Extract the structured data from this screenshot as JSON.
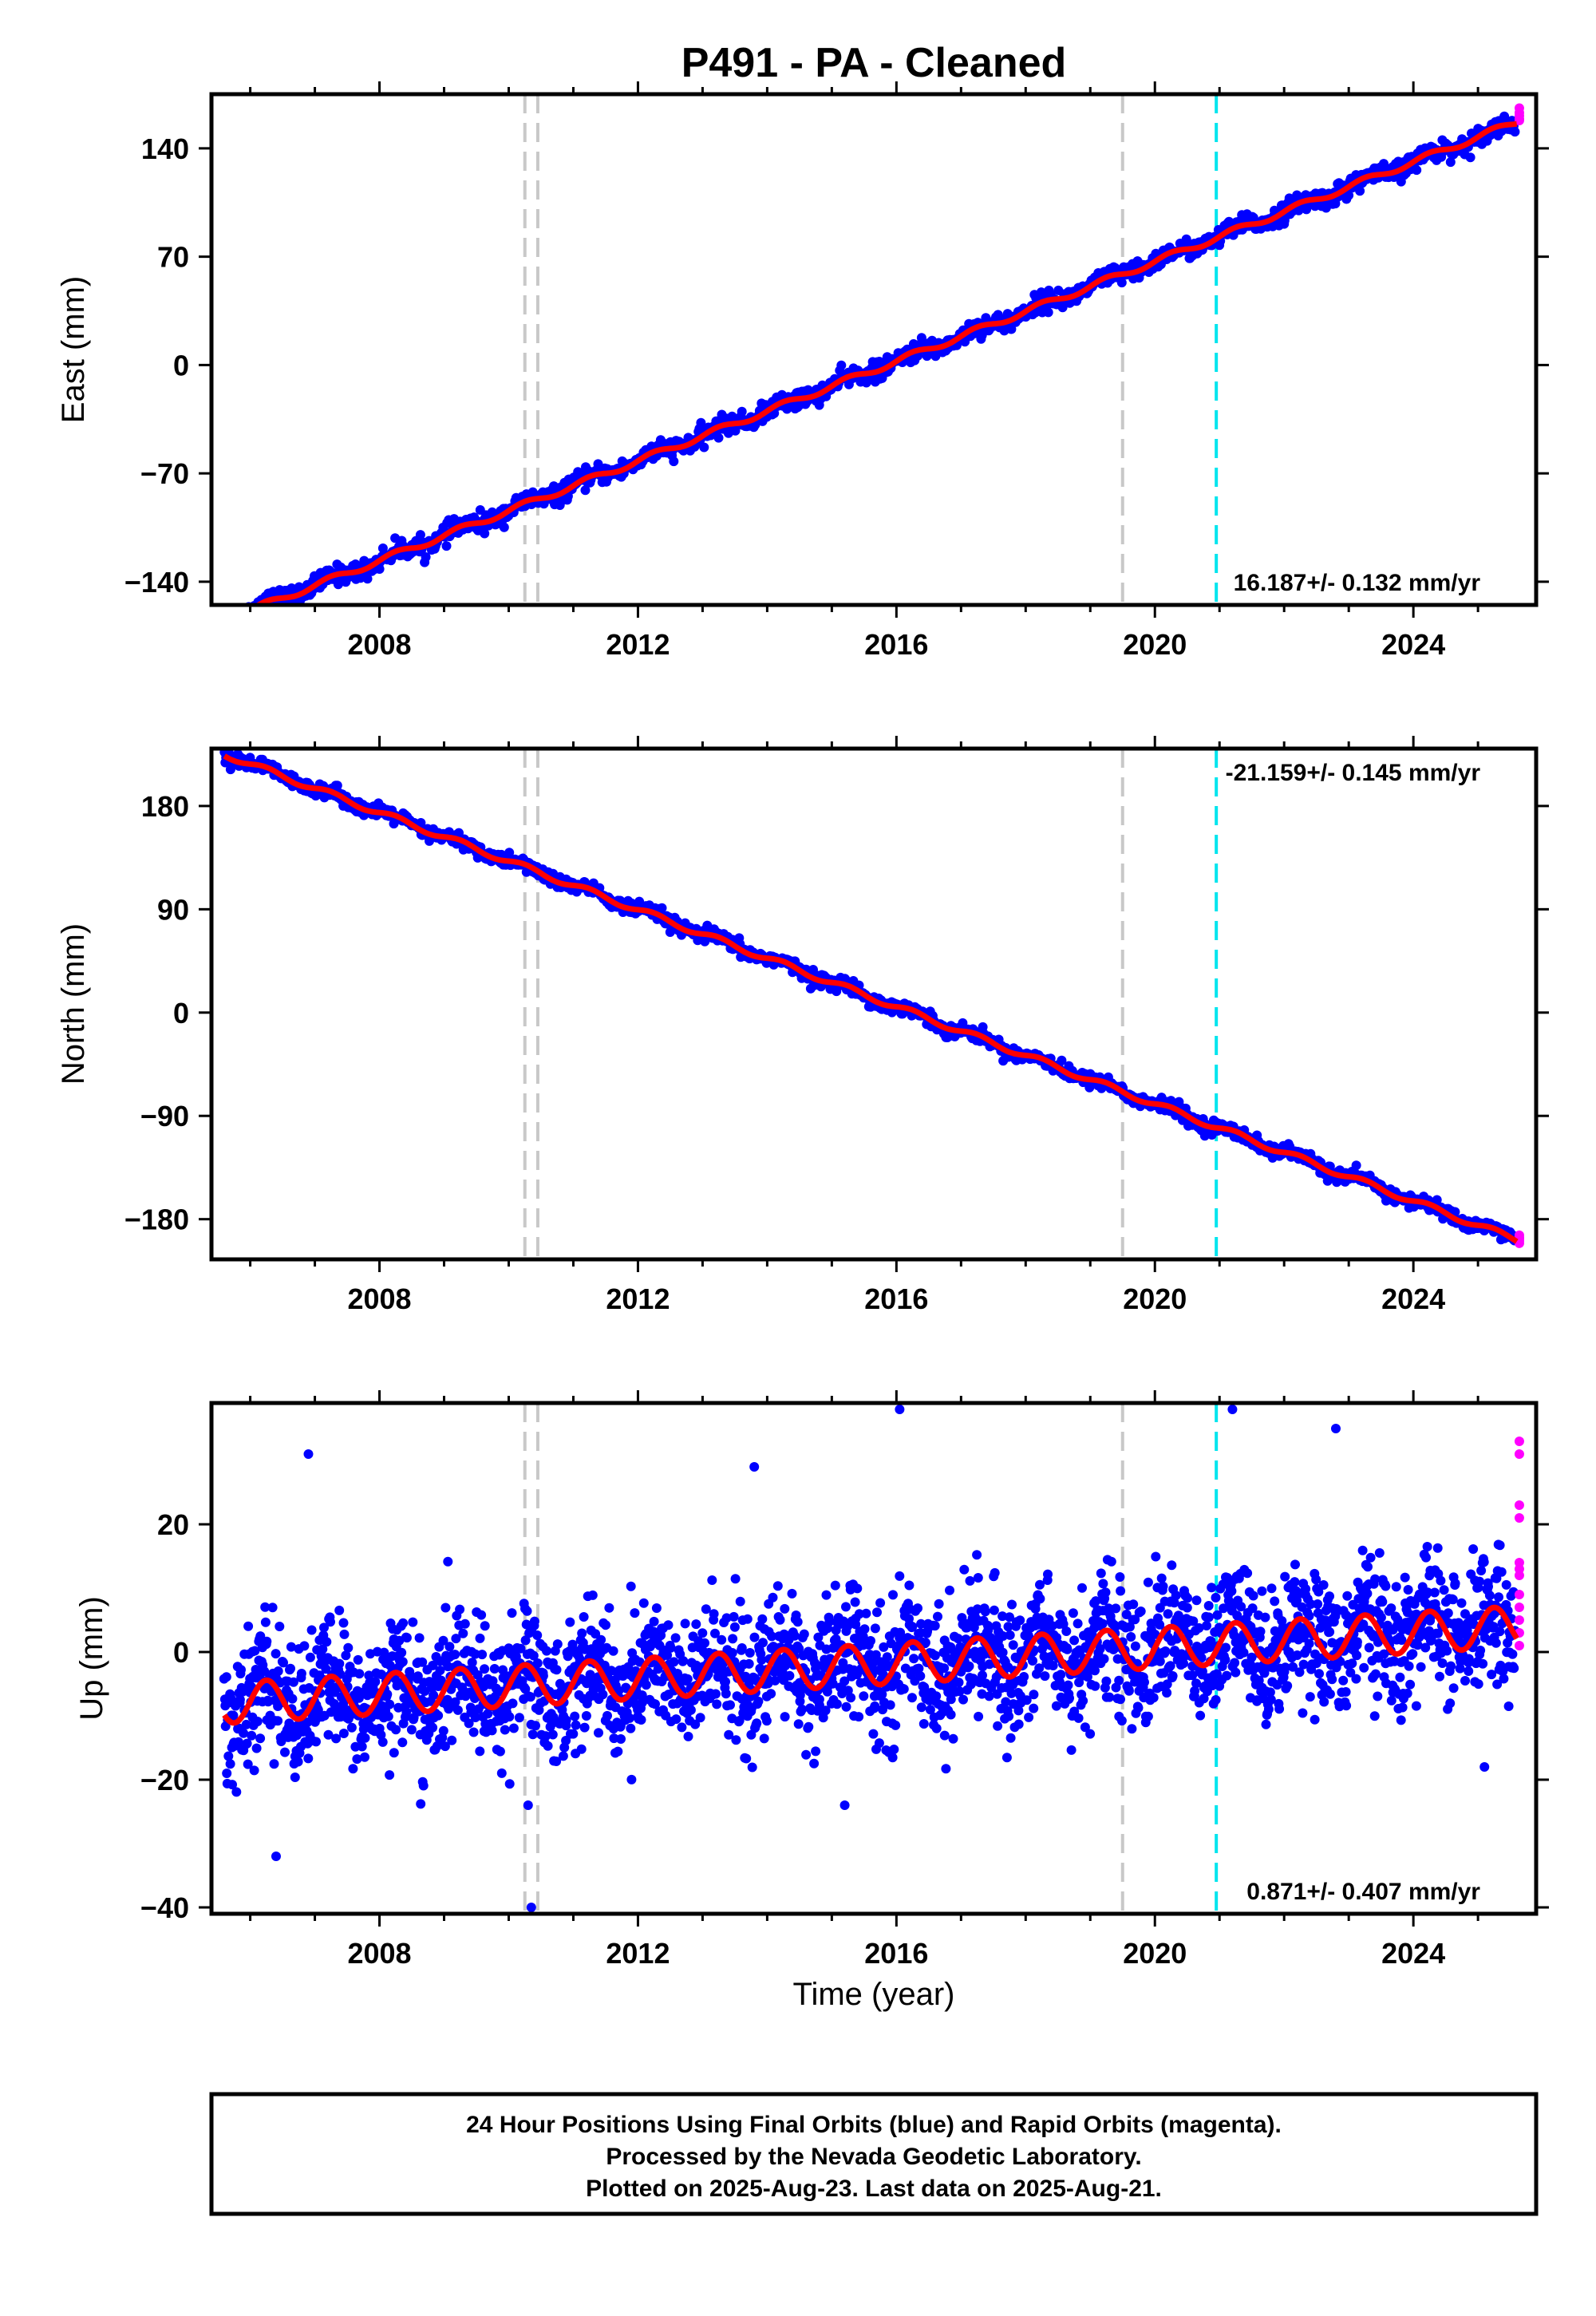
{
  "title": "P491  - PA - Cleaned",
  "colors": {
    "final_points": "#0000ff",
    "rapid_points": "#ff00ff",
    "model": "#ff0000",
    "equipment_change": "#c8c8c8",
    "earthquake": "#00e5ee"
  },
  "xlabel": "Time (year)",
  "footer": [
    "24 Hour Positions Using Final Orbits (blue) and Rapid Orbits (magenta).",
    "Processed by the Nevada Geodetic Laboratory.",
    "Plotted on 2025-Aug-23. Last data on 2025-Aug-21."
  ],
  "chart_data": [
    {
      "type": "scatter",
      "ylabel": "East (mm)",
      "xlim": [
        2005.4,
        2025.9
      ],
      "ylim": [
        -155,
        175
      ],
      "xticks": [
        2008,
        2012,
        2016,
        2020,
        2024
      ],
      "yticks": [
        -140,
        -70,
        0,
        70,
        140
      ],
      "rate_label": "16.187+/- 0.132 mm/yr",
      "rate_position": "bottom-right",
      "start": [
        2005.6,
        -165
      ],
      "end": [
        2025.6,
        157
      ],
      "seasonal_amplitude": 2,
      "scatter": 3,
      "rapid_values": [
        158,
        161,
        163,
        166,
        159
      ],
      "vertical_lines_gray": [
        2010.25,
        2010.45,
        2019.5
      ],
      "vertical_lines_cyan": [
        2020.95
      ]
    },
    {
      "type": "scatter",
      "ylabel": "North (mm)",
      "xlim": [
        2005.4,
        2025.9
      ],
      "ylim": [
        -215,
        230
      ],
      "xticks": [
        2008,
        2012,
        2016,
        2020,
        2024
      ],
      "yticks": [
        -180,
        -90,
        0,
        90,
        180
      ],
      "rate_label": "-21.159+/- 0.145 mm/yr",
      "rate_position": "top-right",
      "start": [
        2005.6,
        225
      ],
      "end": [
        2025.6,
        -198
      ],
      "seasonal_amplitude": 2.5,
      "scatter": 3,
      "rapid_values": [
        -196,
        -199,
        -201,
        -194,
        -197
      ],
      "vertical_lines_gray": [
        2010.25,
        2010.45,
        2019.5
      ],
      "vertical_lines_cyan": [
        2020.95
      ]
    },
    {
      "type": "scatter",
      "ylabel": "Up (mm)",
      "xlim": [
        2005.4,
        2025.9
      ],
      "ylim": [
        -41,
        39
      ],
      "xticks": [
        2008,
        2012,
        2016,
        2020,
        2024
      ],
      "yticks": [
        -40,
        -20,
        0,
        20
      ],
      "rate_label": "0.871+/- 0.407 mm/yr",
      "rate_position": "bottom-right",
      "start": [
        2005.6,
        -8
      ],
      "end": [
        2025.6,
        4
      ],
      "seasonal_amplitude": 3.2,
      "scatter": 5,
      "rapid_values": [
        33,
        31,
        23,
        21,
        14,
        13,
        12,
        9,
        7,
        5,
        3,
        1
      ],
      "outliers": [
        [
          2006.4,
          -32
        ],
        [
          2010.35,
          -40
        ],
        [
          2010.3,
          -24
        ],
        [
          2015.2,
          -24
        ],
        [
          2016.05,
          38
        ],
        [
          2021.2,
          38
        ],
        [
          2022.8,
          35
        ],
        [
          2006.9,
          31
        ],
        [
          2013.8,
          29
        ],
        [
          2025.1,
          -18
        ]
      ],
      "vertical_lines_gray": [
        2010.25,
        2010.45,
        2019.5
      ],
      "vertical_lines_cyan": [
        2020.95
      ]
    }
  ]
}
